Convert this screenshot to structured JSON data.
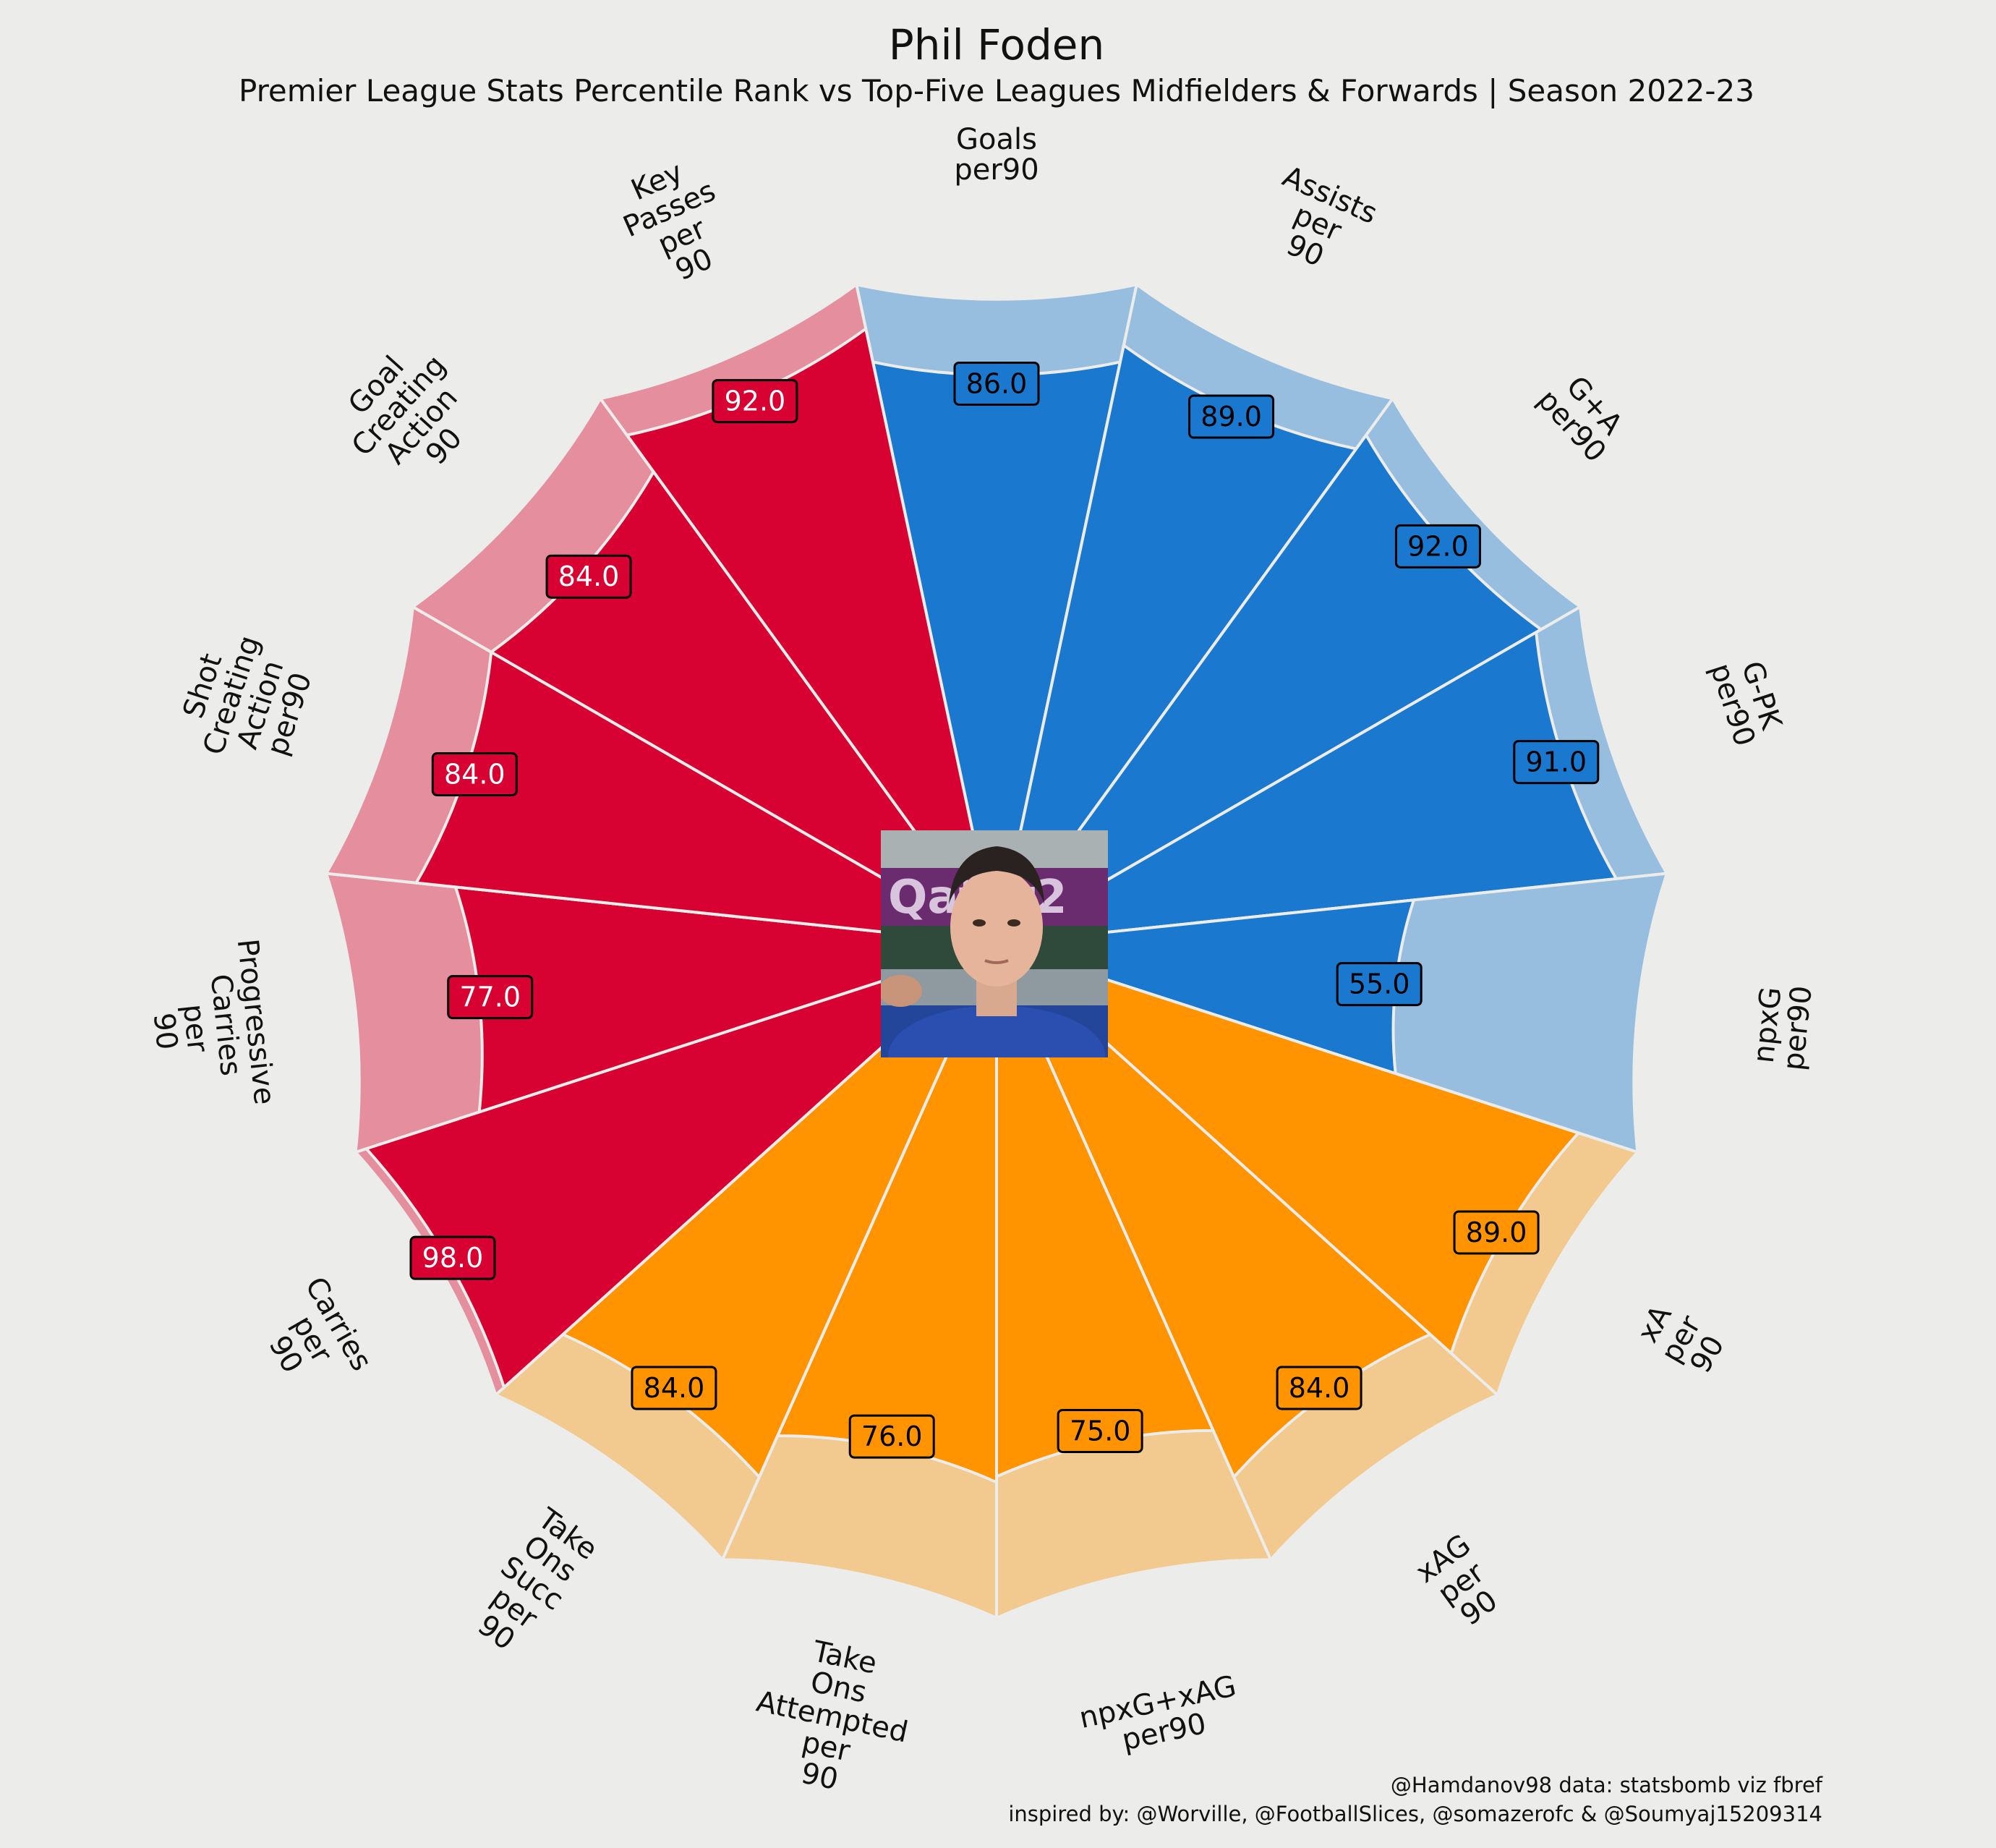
{
  "header": {
    "title": "Phil Foden",
    "subtitle": "Premier League Stats Percentile Rank vs Top-Five Leagues Midfielders & Forwards | Season 2022-23"
  },
  "credits": {
    "line1": "@Hamdanov98 data: statsbomb viz fbref",
    "line2": "inspired by: @Worville, @FootballSlices, @somazerofc & @Soumyaj15209314"
  },
  "colors": {
    "background": "#ececea",
    "attacking": "#1a78cf",
    "attacking_bg": "#97bddf",
    "possession": "#ff9300",
    "possession_bg": "#f2c98e",
    "creation": "#d70232",
    "creation_bg": "#e58f9e",
    "value_text_light": "#ffffff",
    "value_text_dark": "#000000"
  },
  "chart_data": {
    "type": "pizza",
    "value_range": [
      0,
      100
    ],
    "center_image": "player-photo",
    "slices": [
      {
        "label": "Goals\nper90",
        "value": 86.0,
        "group": "attacking"
      },
      {
        "label": "Assists\nper\n90",
        "value": 89.0,
        "group": "attacking"
      },
      {
        "label": "G+A\nper90",
        "value": 92.0,
        "group": "attacking"
      },
      {
        "label": "G-PK\nper90",
        "value": 91.0,
        "group": "attacking"
      },
      {
        "label": "npxG\nper90",
        "value": 55.0,
        "group": "attacking"
      },
      {
        "label": "xA\nper\n90",
        "value": 89.0,
        "group": "possession"
      },
      {
        "label": "xAG\nper\n90",
        "value": 84.0,
        "group": "possession"
      },
      {
        "label": "npxG+xAG\nper90",
        "value": 75.0,
        "group": "possession"
      },
      {
        "label": "Take\nOns\nAttempted\nper\n90",
        "value": 76.0,
        "group": "possession"
      },
      {
        "label": "Take\nOns\nSucc\nper\n90",
        "value": 84.0,
        "group": "possession"
      },
      {
        "label": "Carries\nper\n90",
        "value": 98.0,
        "group": "creation"
      },
      {
        "label": "Progressive\nCarries\nper\n90",
        "value": 77.0,
        "group": "creation"
      },
      {
        "label": "Shot\nCreating\nAction\nper90",
        "value": 84.0,
        "group": "creation"
      },
      {
        "label": "Goal\nCreating\nAction\n90",
        "value": 84.0,
        "group": "creation"
      },
      {
        "label": "Key\nPasses\nper\n90",
        "value": 92.0,
        "group": "creation"
      }
    ]
  }
}
